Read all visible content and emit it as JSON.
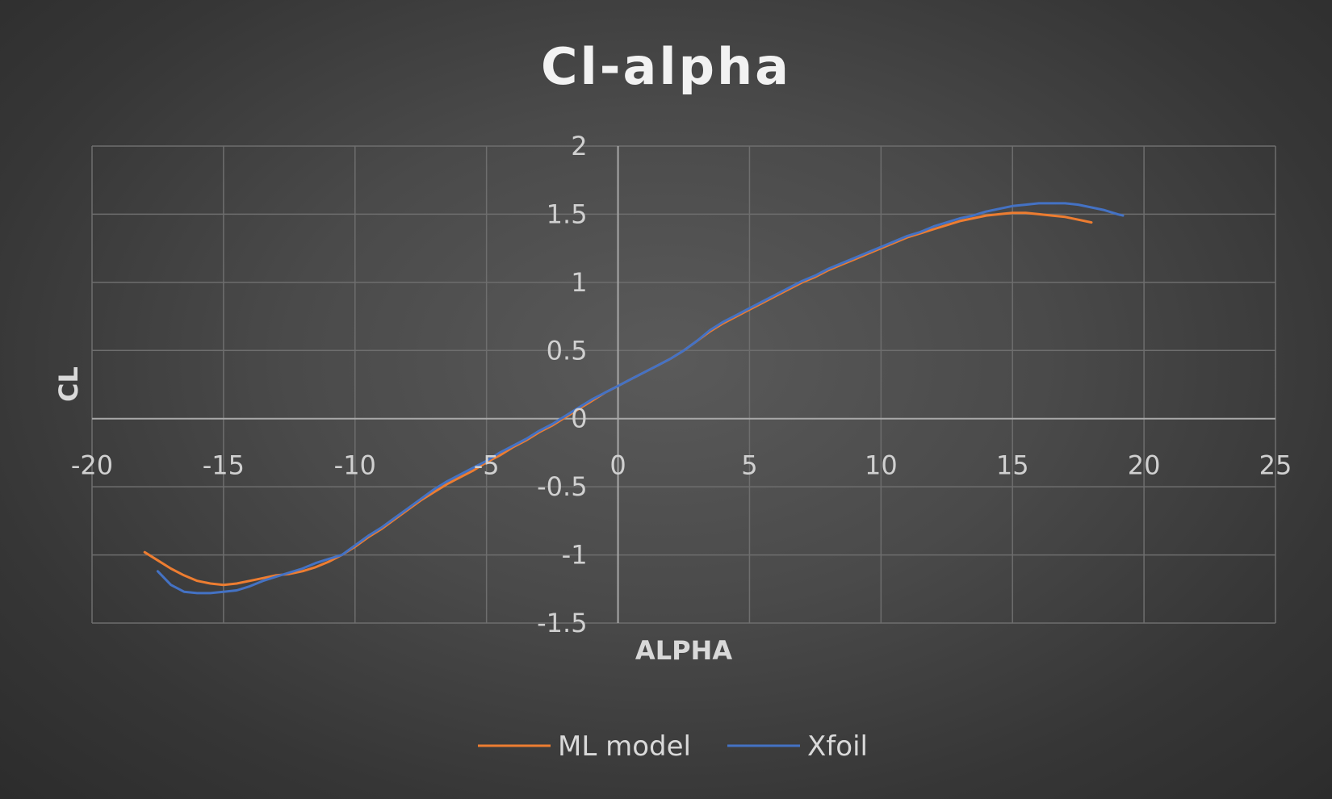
{
  "chart_data": {
    "type": "line",
    "title": "Cl-alpha",
    "xlabel": "ALPHA",
    "ylabel": "CL",
    "xlim": [
      -20,
      25
    ],
    "ylim": [
      -1.5,
      2
    ],
    "x_ticks": [
      -20,
      -15,
      -10,
      -5,
      0,
      5,
      10,
      15,
      20,
      25
    ],
    "x_tick_labels": [
      "-20",
      "-15",
      "-10",
      "-5",
      "0",
      "5",
      "10",
      "15",
      "20",
      "25"
    ],
    "y_ticks": [
      -1.5,
      -1,
      -0.5,
      0,
      0.5,
      1,
      1.5,
      2
    ],
    "y_tick_labels": [
      "-1.5",
      "-1",
      "-0.5",
      "0",
      "0.5",
      "1",
      "1.5",
      "2"
    ],
    "grid": true,
    "legend": "bottom",
    "series": [
      {
        "name": "ML model",
        "color": "#ED7D31",
        "x": [
          -18,
          -17.5,
          -17,
          -16.5,
          -16,
          -15.5,
          -15,
          -14.5,
          -14,
          -13.5,
          -13,
          -12.5,
          -12,
          -11.5,
          -11,
          -10.5,
          -10,
          -9.5,
          -9,
          -8.5,
          -8,
          -7.5,
          -7,
          -6.5,
          -6,
          -5.5,
          -5,
          -4.5,
          -4,
          -3.5,
          -3,
          -2.5,
          -2,
          -1.5,
          -1,
          -0.5,
          0,
          0.5,
          1,
          1.5,
          2,
          2.5,
          3,
          3.5,
          4,
          4.5,
          5,
          5.5,
          6,
          6.5,
          7,
          7.5,
          8,
          8.5,
          9,
          9.5,
          10,
          10.5,
          11,
          11.5,
          12,
          12.5,
          13,
          13.5,
          14,
          14.5,
          15,
          15.5,
          16,
          16.5,
          17,
          17.5,
          18
        ],
        "y": [
          -0.98,
          -1.04,
          -1.1,
          -1.15,
          -1.19,
          -1.21,
          -1.22,
          -1.21,
          -1.19,
          -1.17,
          -1.15,
          -1.14,
          -1.12,
          -1.09,
          -1.05,
          -1.0,
          -0.94,
          -0.87,
          -0.81,
          -0.74,
          -0.67,
          -0.6,
          -0.54,
          -0.48,
          -0.43,
          -0.38,
          -0.32,
          -0.27,
          -0.21,
          -0.16,
          -0.1,
          -0.05,
          0.01,
          0.07,
          0.13,
          0.19,
          0.24,
          0.29,
          0.34,
          0.39,
          0.44,
          0.5,
          0.57,
          0.64,
          0.7,
          0.75,
          0.8,
          0.85,
          0.9,
          0.95,
          1.0,
          1.04,
          1.09,
          1.13,
          1.17,
          1.21,
          1.25,
          1.29,
          1.33,
          1.36,
          1.39,
          1.42,
          1.45,
          1.47,
          1.49,
          1.5,
          1.51,
          1.51,
          1.5,
          1.49,
          1.48,
          1.46,
          1.44
        ]
      },
      {
        "name": "Xfoil",
        "color": "#4472C4",
        "x": [
          -17.5,
          -17,
          -16.5,
          -16,
          -15.5,
          -15,
          -14.5,
          -14,
          -13.5,
          -13,
          -12.5,
          -12,
          -11.5,
          -11,
          -10.5,
          -10,
          -9.5,
          -9,
          -8.5,
          -8,
          -7.5,
          -7,
          -6.5,
          -6,
          -5.5,
          -5,
          -4.5,
          -4,
          -3.5,
          -3,
          -2.5,
          -2,
          -1.5,
          -1,
          -0.5,
          0,
          0.5,
          1,
          1.5,
          2,
          2.5,
          3,
          3.5,
          4,
          4.5,
          5,
          5.5,
          6,
          6.5,
          7,
          7.5,
          8,
          8.5,
          9,
          9.5,
          10,
          10.5,
          11,
          11.5,
          12,
          12.5,
          13,
          13.5,
          14,
          14.5,
          15,
          15.5,
          16,
          16.5,
          17,
          17.5,
          18,
          18.5,
          19,
          19.2
        ],
        "y": [
          -1.12,
          -1.22,
          -1.27,
          -1.28,
          -1.28,
          -1.27,
          -1.26,
          -1.23,
          -1.19,
          -1.16,
          -1.13,
          -1.1,
          -1.06,
          -1.03,
          -1.0,
          -0.93,
          -0.86,
          -0.8,
          -0.73,
          -0.66,
          -0.59,
          -0.52,
          -0.46,
          -0.41,
          -0.36,
          -0.31,
          -0.25,
          -0.2,
          -0.15,
          -0.09,
          -0.04,
          0.02,
          0.08,
          0.14,
          0.19,
          0.24,
          0.29,
          0.34,
          0.39,
          0.44,
          0.5,
          0.57,
          0.65,
          0.71,
          0.76,
          0.81,
          0.86,
          0.91,
          0.96,
          1.01,
          1.05,
          1.1,
          1.14,
          1.18,
          1.22,
          1.26,
          1.3,
          1.34,
          1.37,
          1.41,
          1.44,
          1.47,
          1.49,
          1.52,
          1.54,
          1.56,
          1.57,
          1.58,
          1.58,
          1.58,
          1.57,
          1.55,
          1.53,
          1.5,
          1.49
        ]
      }
    ]
  }
}
